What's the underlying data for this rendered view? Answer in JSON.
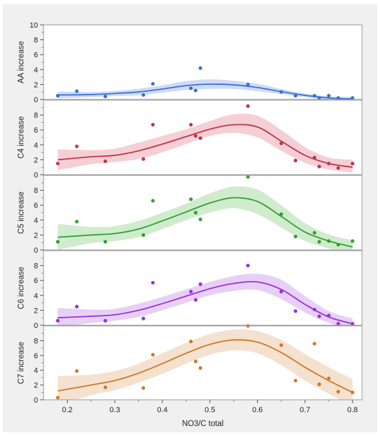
{
  "chart_data": {
    "type": "scatter",
    "xlabel": "NO3/C total",
    "xlim": [
      0.15,
      0.82
    ],
    "xticks": [
      "0.2",
      "0.3",
      "0.4",
      "0.5",
      "0.6",
      "0.7",
      "0.8"
    ],
    "x": [
      0.18,
      0.22,
      0.28,
      0.36,
      0.38,
      0.46,
      0.47,
      0.48,
      0.58,
      0.65,
      0.68,
      0.72,
      0.73,
      0.75,
      0.77,
      0.8
    ],
    "panels": [
      {
        "ylabel": "AA increase",
        "ylim": [
          0,
          10
        ],
        "yticks": [
          "0",
          "2",
          "4",
          "6",
          "8",
          "10"
        ],
        "color": "#3b6fd4",
        "band_color": "#c7d6f5",
        "points_y": [
          0.5,
          1.1,
          0.4,
          0.6,
          2.1,
          1.5,
          1.2,
          4.2,
          2.0,
          1.0,
          0.5,
          0.5,
          0.2,
          0.5,
          0.2,
          0.2
        ],
        "fit": {
          "x": [
            0.18,
            0.25,
            0.3,
            0.35,
            0.4,
            0.45,
            0.5,
            0.55,
            0.6,
            0.65,
            0.7,
            0.75,
            0.8
          ],
          "y": [
            0.6,
            0.65,
            0.8,
            1.0,
            1.4,
            1.85,
            2.05,
            1.95,
            1.6,
            1.05,
            0.55,
            0.2,
            0.08
          ],
          "lower": [
            0.15,
            0.3,
            0.45,
            0.55,
            0.9,
            1.25,
            1.4,
            1.4,
            1.1,
            0.7,
            0.3,
            0.0,
            -0.2
          ],
          "upper": [
            1.05,
            1.0,
            1.15,
            1.45,
            1.9,
            2.45,
            2.7,
            2.5,
            2.1,
            1.4,
            0.8,
            0.4,
            0.35
          ]
        }
      },
      {
        "ylabel": "C4 increase",
        "ylim": [
          0,
          10
        ],
        "yticks": [
          "0",
          "2",
          "4",
          "6",
          "8"
        ],
        "color": "#c0334d",
        "band_color": "#f2c8cc",
        "points_y": [
          1.5,
          3.8,
          1.8,
          2.1,
          6.7,
          6.7,
          5.2,
          4.9,
          9.2,
          4.2,
          1.9,
          2.3,
          1.1,
          1.5,
          0.9,
          1.5
        ],
        "fit": {
          "x": [
            0.18,
            0.25,
            0.3,
            0.35,
            0.4,
            0.45,
            0.5,
            0.55,
            0.6,
            0.65,
            0.7,
            0.75,
            0.8
          ],
          "y": [
            2.0,
            2.4,
            2.6,
            3.2,
            4.1,
            5.1,
            6.1,
            6.7,
            6.4,
            4.5,
            2.6,
            1.5,
            1.0
          ],
          "lower": [
            0.6,
            1.4,
            1.7,
            2.1,
            3.0,
            4.1,
            5.2,
            5.6,
            5.0,
            3.2,
            1.6,
            0.7,
            0.3
          ],
          "upper": [
            3.4,
            3.3,
            3.5,
            4.3,
            5.2,
            6.1,
            7.2,
            8.1,
            7.9,
            6.0,
            3.7,
            2.3,
            2.0
          ]
        }
      },
      {
        "ylabel": "C5 increase",
        "ylim": [
          0,
          10
        ],
        "yticks": [
          "0",
          "2",
          "4",
          "6",
          "8"
        ],
        "color": "#2ea02e",
        "band_color": "#c9e8c5",
        "points_y": [
          1.1,
          3.8,
          1.1,
          2.0,
          6.6,
          6.8,
          5.0,
          4.1,
          9.8,
          4.8,
          1.8,
          2.3,
          1.1,
          1.2,
          0.7,
          1.2
        ],
        "fit": {
          "x": [
            0.18,
            0.25,
            0.3,
            0.35,
            0.4,
            0.45,
            0.5,
            0.55,
            0.6,
            0.65,
            0.7,
            0.75,
            0.8
          ],
          "y": [
            1.7,
            2.0,
            2.2,
            2.8,
            3.9,
            5.1,
            6.3,
            7.0,
            6.5,
            4.5,
            2.4,
            1.2,
            0.4
          ],
          "lower": [
            0.0,
            0.9,
            1.2,
            1.7,
            2.8,
            4.0,
            5.0,
            5.6,
            4.8,
            3.0,
            1.2,
            0.2,
            -0.5
          ],
          "upper": [
            3.5,
            3.1,
            3.2,
            3.9,
            5.0,
            6.2,
            7.6,
            8.5,
            8.1,
            6.0,
            3.6,
            2.1,
            1.3
          ]
        }
      },
      {
        "ylabel": "C6 increase",
        "ylim": [
          0,
          10
        ],
        "yticks": [
          "0",
          "2",
          "4",
          "6",
          "8"
        ],
        "color": "#9b30d9",
        "band_color": "#e3c8f5",
        "points_y": [
          0.6,
          2.5,
          0.6,
          0.9,
          5.7,
          4.5,
          3.4,
          5.5,
          8.0,
          4.5,
          1.9,
          2.1,
          1.2,
          1.3,
          0.2,
          0.2
        ],
        "fit": {
          "x": [
            0.18,
            0.25,
            0.3,
            0.35,
            0.4,
            0.45,
            0.5,
            0.55,
            0.6,
            0.65,
            0.7,
            0.75,
            0.8
          ],
          "y": [
            1.0,
            1.2,
            1.4,
            2.0,
            2.9,
            3.9,
            4.9,
            5.6,
            5.8,
            4.8,
            2.8,
            1.1,
            0.2
          ],
          "lower": [
            -0.3,
            0.3,
            0.6,
            1.1,
            2.0,
            3.0,
            4.0,
            4.6,
            4.7,
            3.5,
            1.7,
            0.3,
            -0.5
          ],
          "upper": [
            2.3,
            2.1,
            2.2,
            2.9,
            3.8,
            4.8,
            5.8,
            6.6,
            6.9,
            6.1,
            3.9,
            1.9,
            0.9
          ]
        }
      },
      {
        "ylabel": "C7 increase",
        "ylim": [
          0,
          10
        ],
        "yticks": [
          "0",
          "2",
          "4",
          "6",
          "8"
        ],
        "color": "#cc7a22",
        "band_color": "#f3dcc7",
        "points_y": [
          0.3,
          3.9,
          1.7,
          1.6,
          6.1,
          7.9,
          5.2,
          4.3,
          10.0,
          7.4,
          2.6,
          7.6,
          2.1,
          2.9,
          1.1,
          1.0
        ],
        "fit": {
          "x": [
            0.18,
            0.25,
            0.3,
            0.35,
            0.4,
            0.45,
            0.5,
            0.55,
            0.6,
            0.65,
            0.7,
            0.75,
            0.8
          ],
          "y": [
            1.2,
            2.0,
            2.6,
            3.6,
            4.9,
            6.3,
            7.5,
            8.1,
            7.8,
            6.4,
            4.4,
            2.6,
            1.0
          ],
          "lower": [
            -0.8,
            0.6,
            1.3,
            2.3,
            3.5,
            4.9,
            6.1,
            6.7,
            6.3,
            4.7,
            2.6,
            0.8,
            -0.8
          ],
          "upper": [
            3.2,
            3.4,
            3.9,
            4.9,
            6.3,
            7.7,
            8.9,
            9.5,
            9.3,
            8.1,
            6.2,
            4.4,
            2.8
          ]
        }
      }
    ]
  }
}
